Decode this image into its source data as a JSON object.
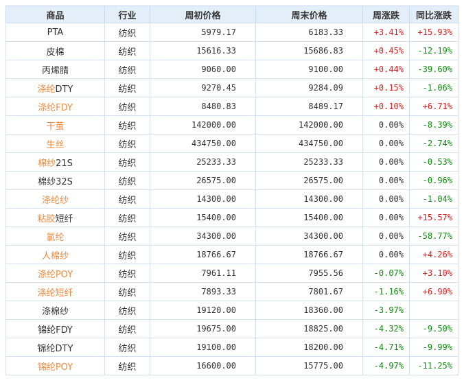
{
  "headers": [
    "商品",
    "行业",
    "周初价格",
    "周末价格",
    "周涨跌",
    "同比涨跌"
  ],
  "rows": [
    {
      "name": [
        {
          "t": "PTA",
          "c": "dark"
        }
      ],
      "industry": "纺织",
      "start": "5979.17",
      "end": "6183.33",
      "weekly": "+3.41%",
      "yoy": "+15.93%"
    },
    {
      "name": [
        {
          "t": "皮棉",
          "c": "dark"
        }
      ],
      "industry": "纺织",
      "start": "15616.33",
      "end": "15686.83",
      "weekly": "+0.45%",
      "yoy": "-12.19%"
    },
    {
      "name": [
        {
          "t": "丙烯腈",
          "c": "dark"
        }
      ],
      "industry": "纺织",
      "start": "9060.00",
      "end": "9100.00",
      "weekly": "+0.44%",
      "yoy": "-39.60%"
    },
    {
      "name": [
        {
          "t": "涤纶",
          "c": "link"
        },
        {
          "t": "DTY",
          "c": "dark"
        }
      ],
      "industry": "纺织",
      "start": "9270.45",
      "end": "9284.09",
      "weekly": "+0.15%",
      "yoy": "-1.06%"
    },
    {
      "name": [
        {
          "t": "涤纶FDY",
          "c": "link"
        }
      ],
      "industry": "纺织",
      "start": "8480.83",
      "end": "8489.17",
      "weekly": "+0.10%",
      "yoy": "+6.71%"
    },
    {
      "name": [
        {
          "t": "干茧",
          "c": "link"
        }
      ],
      "industry": "纺织",
      "start": "142000.00",
      "end": "142000.00",
      "weekly": "0.00%",
      "yoy": "-8.39%"
    },
    {
      "name": [
        {
          "t": "生丝",
          "c": "link"
        }
      ],
      "industry": "纺织",
      "start": "434750.00",
      "end": "434750.00",
      "weekly": "0.00%",
      "yoy": "-2.74%"
    },
    {
      "name": [
        {
          "t": "棉纱",
          "c": "link"
        },
        {
          "t": "21S",
          "c": "dark"
        }
      ],
      "industry": "纺织",
      "start": "25233.33",
      "end": "25233.33",
      "weekly": "0.00%",
      "yoy": "-0.53%"
    },
    {
      "name": [
        {
          "t": "棉纱32S",
          "c": "dark"
        }
      ],
      "industry": "纺织",
      "start": "26575.00",
      "end": "26575.00",
      "weekly": "0.00%",
      "yoy": "-0.96%"
    },
    {
      "name": [
        {
          "t": "涤纶纱",
          "c": "link"
        }
      ],
      "industry": "纺织",
      "start": "14300.00",
      "end": "14300.00",
      "weekly": "0.00%",
      "yoy": "-1.04%"
    },
    {
      "name": [
        {
          "t": "粘胶",
          "c": "link"
        },
        {
          "t": "短纤",
          "c": "dark"
        }
      ],
      "industry": "纺织",
      "start": "15400.00",
      "end": "15400.00",
      "weekly": "0.00%",
      "yoy": "+15.57%"
    },
    {
      "name": [
        {
          "t": "氯纶",
          "c": "link"
        }
      ],
      "industry": "纺织",
      "start": "34300.00",
      "end": "34300.00",
      "weekly": "0.00%",
      "yoy": "-58.77%"
    },
    {
      "name": [
        {
          "t": "人棉纱",
          "c": "link"
        }
      ],
      "industry": "纺织",
      "start": "18766.67",
      "end": "18766.67",
      "weekly": "0.00%",
      "yoy": "+4.26%"
    },
    {
      "name": [
        {
          "t": "涤纶POY",
          "c": "link"
        }
      ],
      "industry": "纺织",
      "start": "7961.11",
      "end": "7955.56",
      "weekly": "-0.07%",
      "yoy": "+3.10%"
    },
    {
      "name": [
        {
          "t": "涤纶短纤",
          "c": "link"
        }
      ],
      "industry": "纺织",
      "start": "7893.33",
      "end": "7801.67",
      "weekly": "-1.16%",
      "yoy": "+6.90%"
    },
    {
      "name": [
        {
          "t": "涤棉纱",
          "c": "dark"
        }
      ],
      "industry": "纺织",
      "start": "19120.00",
      "end": "18360.00",
      "weekly": "-3.97%",
      "yoy": ""
    },
    {
      "name": [
        {
          "t": "锦纶FDY",
          "c": "dark"
        }
      ],
      "industry": "纺织",
      "start": "19675.00",
      "end": "18825.00",
      "weekly": "-4.32%",
      "yoy": "-9.50%"
    },
    {
      "name": [
        {
          "t": "锦纶DTY",
          "c": "dark"
        }
      ],
      "industry": "纺织",
      "start": "19100.00",
      "end": "18200.00",
      "weekly": "-4.71%",
      "yoy": "-9.99%"
    },
    {
      "name": [
        {
          "t": "锦纶POY",
          "c": "link"
        }
      ],
      "industry": "纺织",
      "start": "16600.00",
      "end": "15775.00",
      "weekly": "-4.97%",
      "yoy": "-11.25%"
    }
  ],
  "colors": {
    "header_bg": "#e4eef9",
    "border": "#d2e2f2",
    "up": "#e02020",
    "down": "#108a10",
    "link": "#f08a3c",
    "text": "#333333"
  }
}
